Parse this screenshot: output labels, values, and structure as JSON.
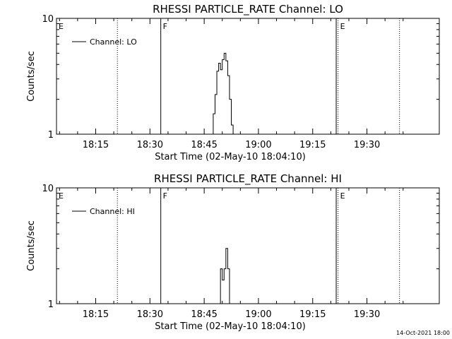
{
  "chart_data": [
    {
      "type": "line",
      "title": "RHESSI PARTICLE_RATE Channel: LO",
      "xlabel": "Start Time (02-May-10 18:04:10)",
      "ylabel": "Counts/sec",
      "y_scale": "log",
      "ylim": [
        1,
        10
      ],
      "y_tick_labels": [
        "1",
        "10"
      ],
      "xlim": [
        "18:04:10",
        "19:50:00"
      ],
      "x_tick_labels": [
        "18:15",
        "18:30",
        "18:45",
        "19:00",
        "19:15",
        "19:30"
      ],
      "legend": {
        "position": "top-left",
        "entries": [
          "Channel: LO"
        ]
      },
      "series": [
        {
          "name": "Channel: LO",
          "x": [
            "18:47:00",
            "18:47:30",
            "18:48:00",
            "18:48:30",
            "18:49:00",
            "18:49:30",
            "18:50:00",
            "18:50:30",
            "18:51:00",
            "18:51:30",
            "18:52:00",
            "18:52:30",
            "18:53:00"
          ],
          "y": [
            1,
            1.5,
            2.2,
            3.5,
            4.1,
            3.6,
            4.4,
            5.0,
            4.3,
            3.2,
            2.0,
            1.2,
            1
          ]
        }
      ],
      "markers": [
        {
          "time": "18:04:10",
          "label": "E",
          "style": "solid"
        },
        {
          "time": "18:21:00",
          "label": "",
          "style": "dotted"
        },
        {
          "time": "18:33:00",
          "label": "F",
          "style": "solid"
        },
        {
          "time": "19:21:30",
          "label": "",
          "style": "solid"
        },
        {
          "time": "19:22:00",
          "label": "E",
          "style": "dotted"
        },
        {
          "time": "19:39:00",
          "label": "",
          "style": "dotted"
        }
      ]
    },
    {
      "type": "line",
      "title": "RHESSI PARTICLE_RATE Channel: HI",
      "xlabel": "Start Time (02-May-10 18:04:10)",
      "ylabel": "Counts/sec",
      "y_scale": "log",
      "ylim": [
        1,
        10
      ],
      "y_tick_labels": [
        "1",
        "10"
      ],
      "xlim": [
        "18:04:10",
        "19:50:00"
      ],
      "x_tick_labels": [
        "18:15",
        "18:30",
        "18:45",
        "19:00",
        "19:15",
        "19:30"
      ],
      "legend": {
        "position": "top-left",
        "entries": [
          "Channel: HI"
        ]
      },
      "series": [
        {
          "name": "Channel: HI",
          "x": [
            "18:49:00",
            "18:49:30",
            "18:50:00",
            "18:50:30",
            "18:51:00",
            "18:51:30",
            "18:52:00"
          ],
          "y": [
            1,
            2.0,
            1.6,
            2.0,
            3.0,
            2.0,
            1
          ]
        }
      ],
      "markers": [
        {
          "time": "18:04:10",
          "label": "E",
          "style": "solid"
        },
        {
          "time": "18:21:00",
          "label": "",
          "style": "dotted"
        },
        {
          "time": "18:33:00",
          "label": "F",
          "style": "solid"
        },
        {
          "time": "19:21:30",
          "label": "",
          "style": "solid"
        },
        {
          "time": "19:22:00",
          "label": "E",
          "style": "dotted"
        },
        {
          "time": "19:39:00",
          "label": "",
          "style": "dotted"
        }
      ]
    }
  ],
  "footer": {
    "timestamp": "14-Oct-2021 18:00"
  },
  "colors": {
    "background": "#ffffff",
    "foreground": "#000000"
  }
}
